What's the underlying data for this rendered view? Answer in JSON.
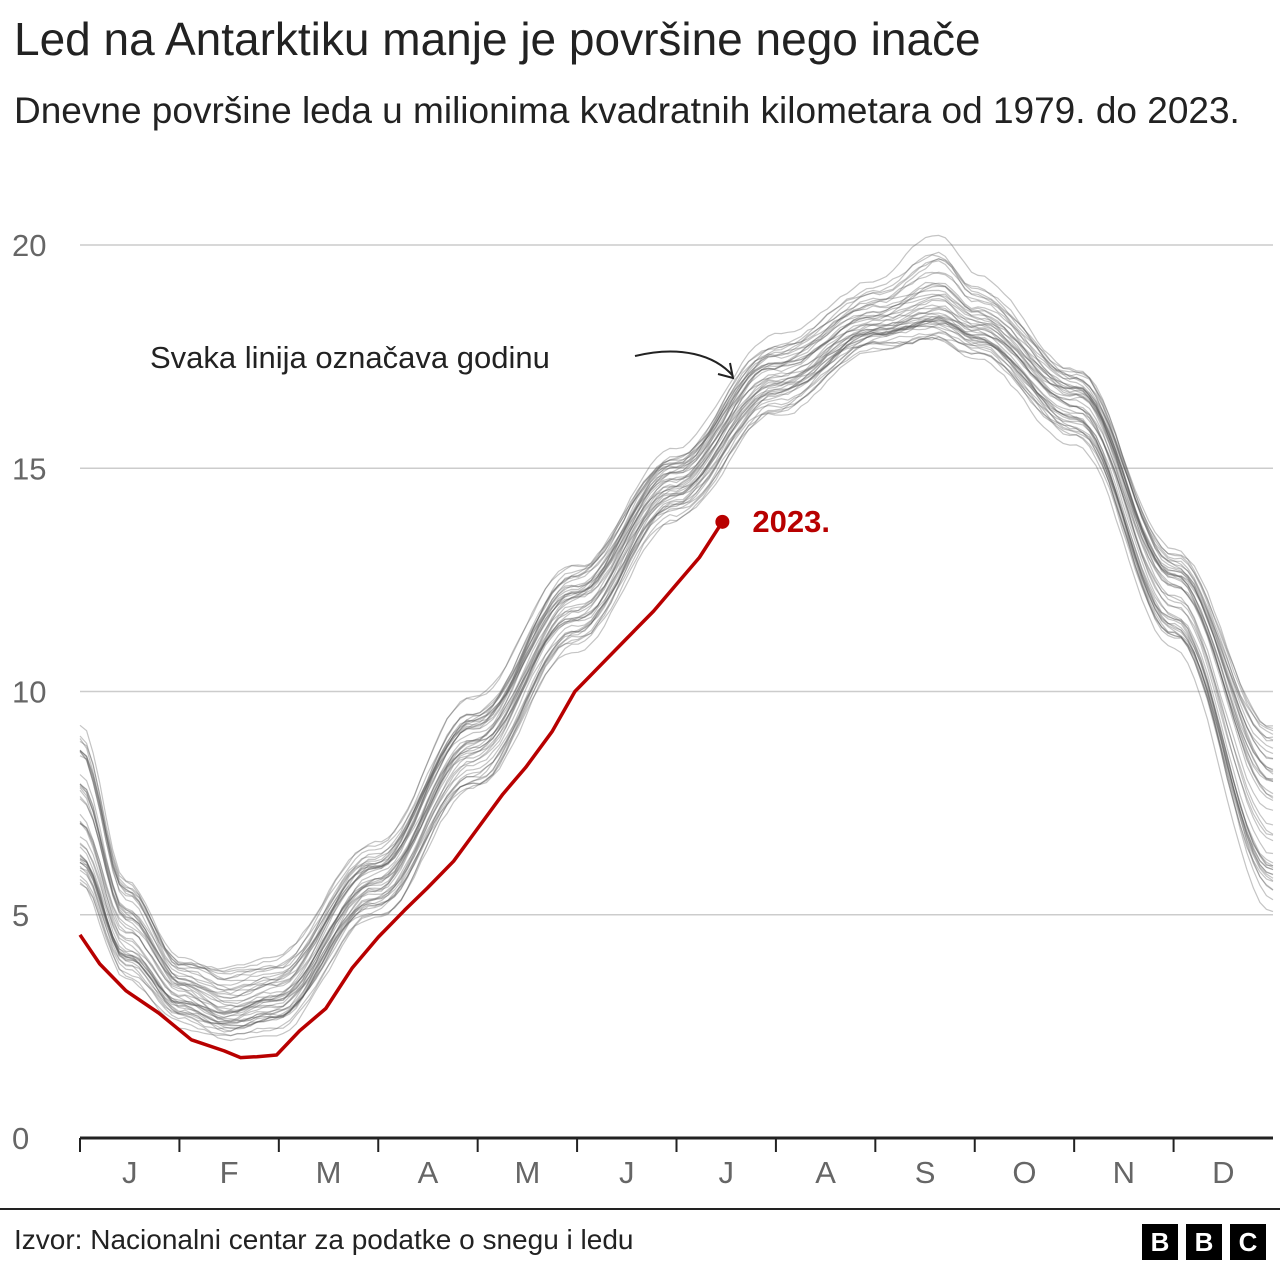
{
  "title": "Led na Antarktiku manje je površine nego inače",
  "subtitle": "Dnevne površine leda u milionima kvadratnih kilometara od 1979. do 2023.",
  "source": "Izvor: Nacionalni centar za podatke o snegu i ledu",
  "logo": "BBC",
  "chart_data": {
    "type": "line",
    "title": "Led na Antarktiku manje je površine nego inače",
    "xlabel": "",
    "ylabel": "",
    "ylim": [
      0,
      20
    ],
    "yticks": [
      0,
      5,
      10,
      15,
      20
    ],
    "xticks": [
      "J",
      "F",
      "M",
      "A",
      "M",
      "J",
      "J",
      "A",
      "S",
      "O",
      "N",
      "D"
    ],
    "x_unit": "day of year",
    "grid": "horizontal",
    "annotation": "Svaka linija označava godinu",
    "colors": {
      "highlight": "#b80000",
      "history": "#555555",
      "grid": "#cccccc"
    },
    "historical_years": "1979-2022",
    "historical_envelope": {
      "day": [
        1,
        15,
        32,
        46,
        60,
        91,
        121,
        152,
        182,
        213,
        244,
        263,
        274,
        305,
        335,
        365
      ],
      "mean": [
        7.0,
        4.6,
        3.3,
        2.8,
        3.1,
        5.8,
        8.9,
        12.0,
        14.7,
        17.1,
        18.3,
        18.6,
        18.2,
        16.6,
        12.3,
        7.4
      ],
      "low": [
        5.5,
        3.5,
        2.5,
        2.2,
        2.4,
        4.9,
        7.8,
        11.0,
        13.9,
        16.2,
        17.6,
        17.8,
        17.5,
        15.5,
        10.9,
        4.9
      ],
      "high": [
        9.4,
        5.8,
        4.0,
        3.8,
        4.0,
        6.6,
        9.9,
        13.0,
        15.5,
        18.0,
        19.2,
        20.2,
        19.3,
        17.3,
        13.2,
        9.5
      ]
    },
    "series": [
      {
        "name": "2023.",
        "day": [
          1,
          7,
          15,
          25,
          35,
          45,
          50,
          55,
          61,
          68,
          76,
          84,
          92,
          100,
          107,
          115,
          122,
          130,
          137,
          145,
          152,
          160,
          168,
          176,
          183,
          190,
          197
        ],
        "value": [
          4.55,
          3.9,
          3.3,
          2.8,
          2.2,
          1.95,
          1.8,
          1.82,
          1.86,
          2.4,
          2.9,
          3.8,
          4.5,
          5.1,
          5.6,
          6.2,
          6.9,
          7.7,
          8.3,
          9.1,
          10.0,
          10.6,
          11.2,
          11.8,
          12.4,
          13.0,
          13.8
        ]
      }
    ]
  }
}
